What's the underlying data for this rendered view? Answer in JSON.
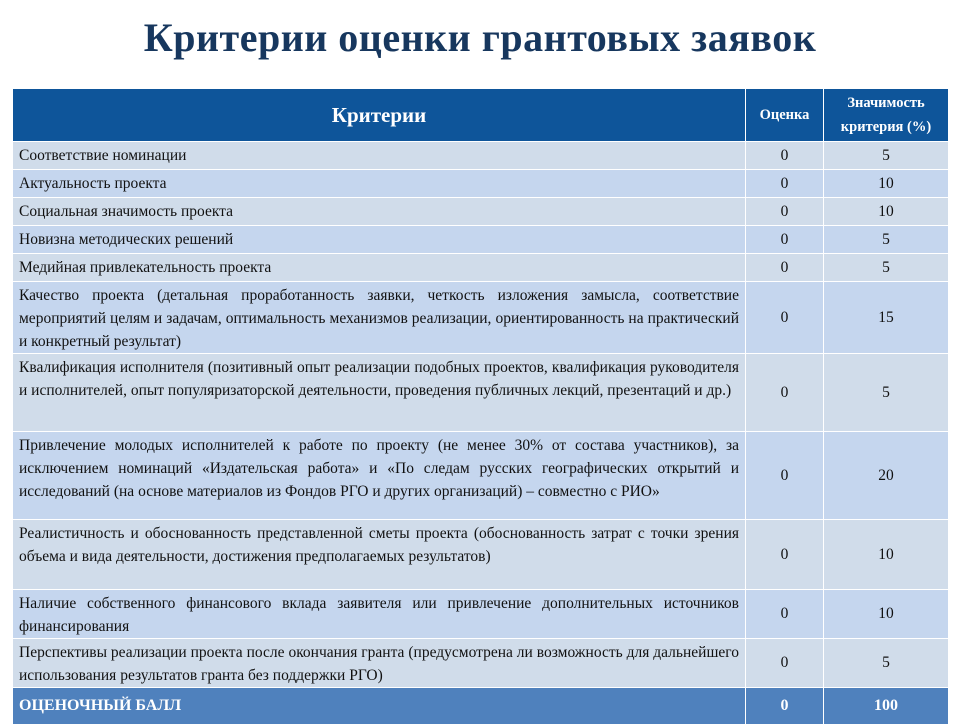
{
  "title": "Критерии оценки грантовых заявок",
  "table": {
    "headers": [
      "Критерии",
      "Оценка",
      "Значимость критерия (%)"
    ],
    "rows": [
      {
        "criterion": "Соответствие номинации",
        "score": "0",
        "weight": "5"
      },
      {
        "criterion": "Актуальность проекта",
        "score": "0",
        "weight": "10"
      },
      {
        "criterion": "Социальная значимость проекта",
        "score": "0",
        "weight": "10"
      },
      {
        "criterion": "Новизна методических решений",
        "score": "0",
        "weight": "5"
      },
      {
        "criterion": "Медийная привлекательность проекта",
        "score": "0",
        "weight": "5"
      },
      {
        "criterion": "Качество проекта (детальная проработанность заявки, четкость изложения замысла, соответствие мероприятий целям и задачам, оптимальность механизмов реализации, ориентированность на практический и конкретный результат)",
        "score": "0",
        "weight": "15"
      },
      {
        "criterion": "Квалификация исполнителя (позитивный опыт реализации подобных проектов, квалификация руководителя и исполнителей, опыт популяризаторской деятельности, проведения публичных лекций, презентаций и др.)",
        "score": "0",
        "weight": "5"
      },
      {
        "criterion": "Привлечение молодых исполнителей к работе по проекту (не менее 30% от состава участников), за исключением номинаций «Издательская работа» и «По следам русских географических открытий и исследований (на основе материалов из Фондов РГО и других организаций) – совместно с РИО»",
        "score": "0",
        "weight": "20"
      },
      {
        "criterion": "Реалистичность и обоснованность представленной сметы проекта (обоснованность затрат с точки зрения объема и вида деятельности, достижения предполагаемых результатов)",
        "score": "0",
        "weight": "10"
      },
      {
        "criterion": "Наличие собственного финансового вклада заявителя или привлечение дополнительных источников финансирования",
        "score": "0",
        "weight": "10"
      },
      {
        "criterion": "Перспективы реализации проекта после окончания гранта (предусмотрена ли возможность для дальнейшего использования результатов гранта без поддержки РГО)",
        "score": "0",
        "weight": "5"
      }
    ],
    "total": {
      "label": "ОЦЕНОЧНЫЙ БАЛЛ",
      "score": "0",
      "weight": "100"
    }
  },
  "colors": {
    "title": "#17375e",
    "header": "#0e559a",
    "row_a": "#d0dcea",
    "row_b": "#c5d6ee",
    "total": "#4f81bd"
  }
}
